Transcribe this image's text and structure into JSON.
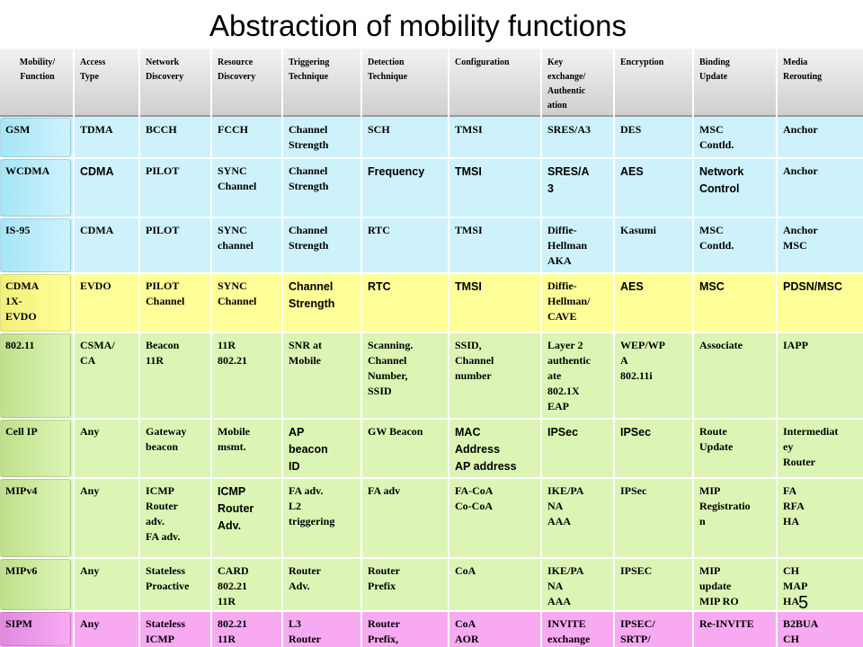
{
  "title": "Abstraction of mobility functions",
  "page_number": "5",
  "colors": {
    "header": "#d6d6d6",
    "light_blue": "#cdf2fc",
    "blue_firstcol": "#a6e6f6",
    "yellow": "#ffff99",
    "yellow_firstcol": "#f0f07a",
    "green": "#dcf5b4",
    "green_firstcol": "#c0e08c",
    "pink": "#f7aaf2",
    "pink_firstcol": "#e08ae0"
  },
  "headers": [
    "Mobility/ Function",
    "Access Type",
    "Network Discovery",
    "Resource Discovery",
    "Triggering Technique",
    "Detection Technique",
    "Configuration",
    "Key exchange/ Authentic ation",
    "Encryption",
    "Binding Update",
    "Media Rerouting"
  ],
  "rows": [
    {
      "cells": [
        "GSM",
        "TDMA",
        "BCCH",
        "FCCH",
        "Channel Strength",
        "SCH",
        "TMSI",
        "SRES/A3",
        "DES",
        "MSC Contld.",
        "Anchor"
      ]
    },
    {
      "cells": [
        "WCDMA",
        "CDMA",
        "PILOT",
        "SYNC Channel",
        "Channel Strength",
        "Frequency",
        "TMSI",
        "SRES/A 3",
        "AES",
        "Network Control",
        "Anchor"
      ]
    },
    {
      "cells": [
        "IS-95",
        "CDMA",
        "PILOT",
        "SYNC channel",
        "Channel Strength",
        "RTC",
        "TMSI",
        "Diffie- Hellman AKA",
        "Kasumi",
        "MSC Contld.",
        "Anchor MSC"
      ]
    },
    {
      "cells": [
        "CDMA 1X- EVDO",
        "EVDO",
        "PILOT Channel",
        "SYNC Channel",
        "Channel Strength",
        "RTC",
        "TMSI",
        "Diffie- Hellman/ CAVE",
        "AES",
        "MSC",
        "PDSN/MSC"
      ]
    },
    {
      "cells": [
        "802.11",
        "CSMA/ CA",
        "Beacon 11R",
        "11R 802.21",
        "SNR at Mobile",
        "Scanning. Channel Number, SSID",
        "SSID, Channel number",
        "Layer 2 authentic ate 802.1X EAP",
        "WEP/WP A 802.11i",
        "Associate",
        "IAPP"
      ]
    },
    {
      "cells": [
        "Cell IP",
        "Any",
        "Gateway beacon",
        "Mobile msmt.",
        "AP beacon ID",
        "GW Beacon",
        "MAC Address AP address",
        "IPSec",
        "IPSec",
        "Route Update",
        "Intermediat ey Router"
      ]
    },
    {
      "cells": [
        "MIPv4",
        "Any",
        "ICMP Router adv. FA adv.",
        "ICMP Router Adv.",
        "FA adv. L2 triggering",
        "FA adv",
        "FA-CoA Co-CoA",
        "IKE/PA NA AAA",
        "IPSec",
        "MIP Registratio n",
        "FA RFA HA"
      ]
    },
    {
      "cells": [
        "MIPv6",
        "Any",
        "Stateless Proactive",
        "CARD 802.21 11R",
        "Router Adv.",
        "Router Prefix",
        "CoA",
        "IKE/PA NA AAA",
        "IPSEC",
        "MIP update MIP RO",
        "CH MAP HA"
      ]
    },
    {
      "cells": [
        "SIPM",
        "Any",
        "Stateless ICMP",
        "802.21 11R",
        "L3 Router",
        "Router Prefix,",
        "CoA AOR",
        "INVITE exchange",
        "IPSEC/ SRTP/",
        "Re-INVITE",
        "B2BUA CH"
      ]
    }
  ]
}
